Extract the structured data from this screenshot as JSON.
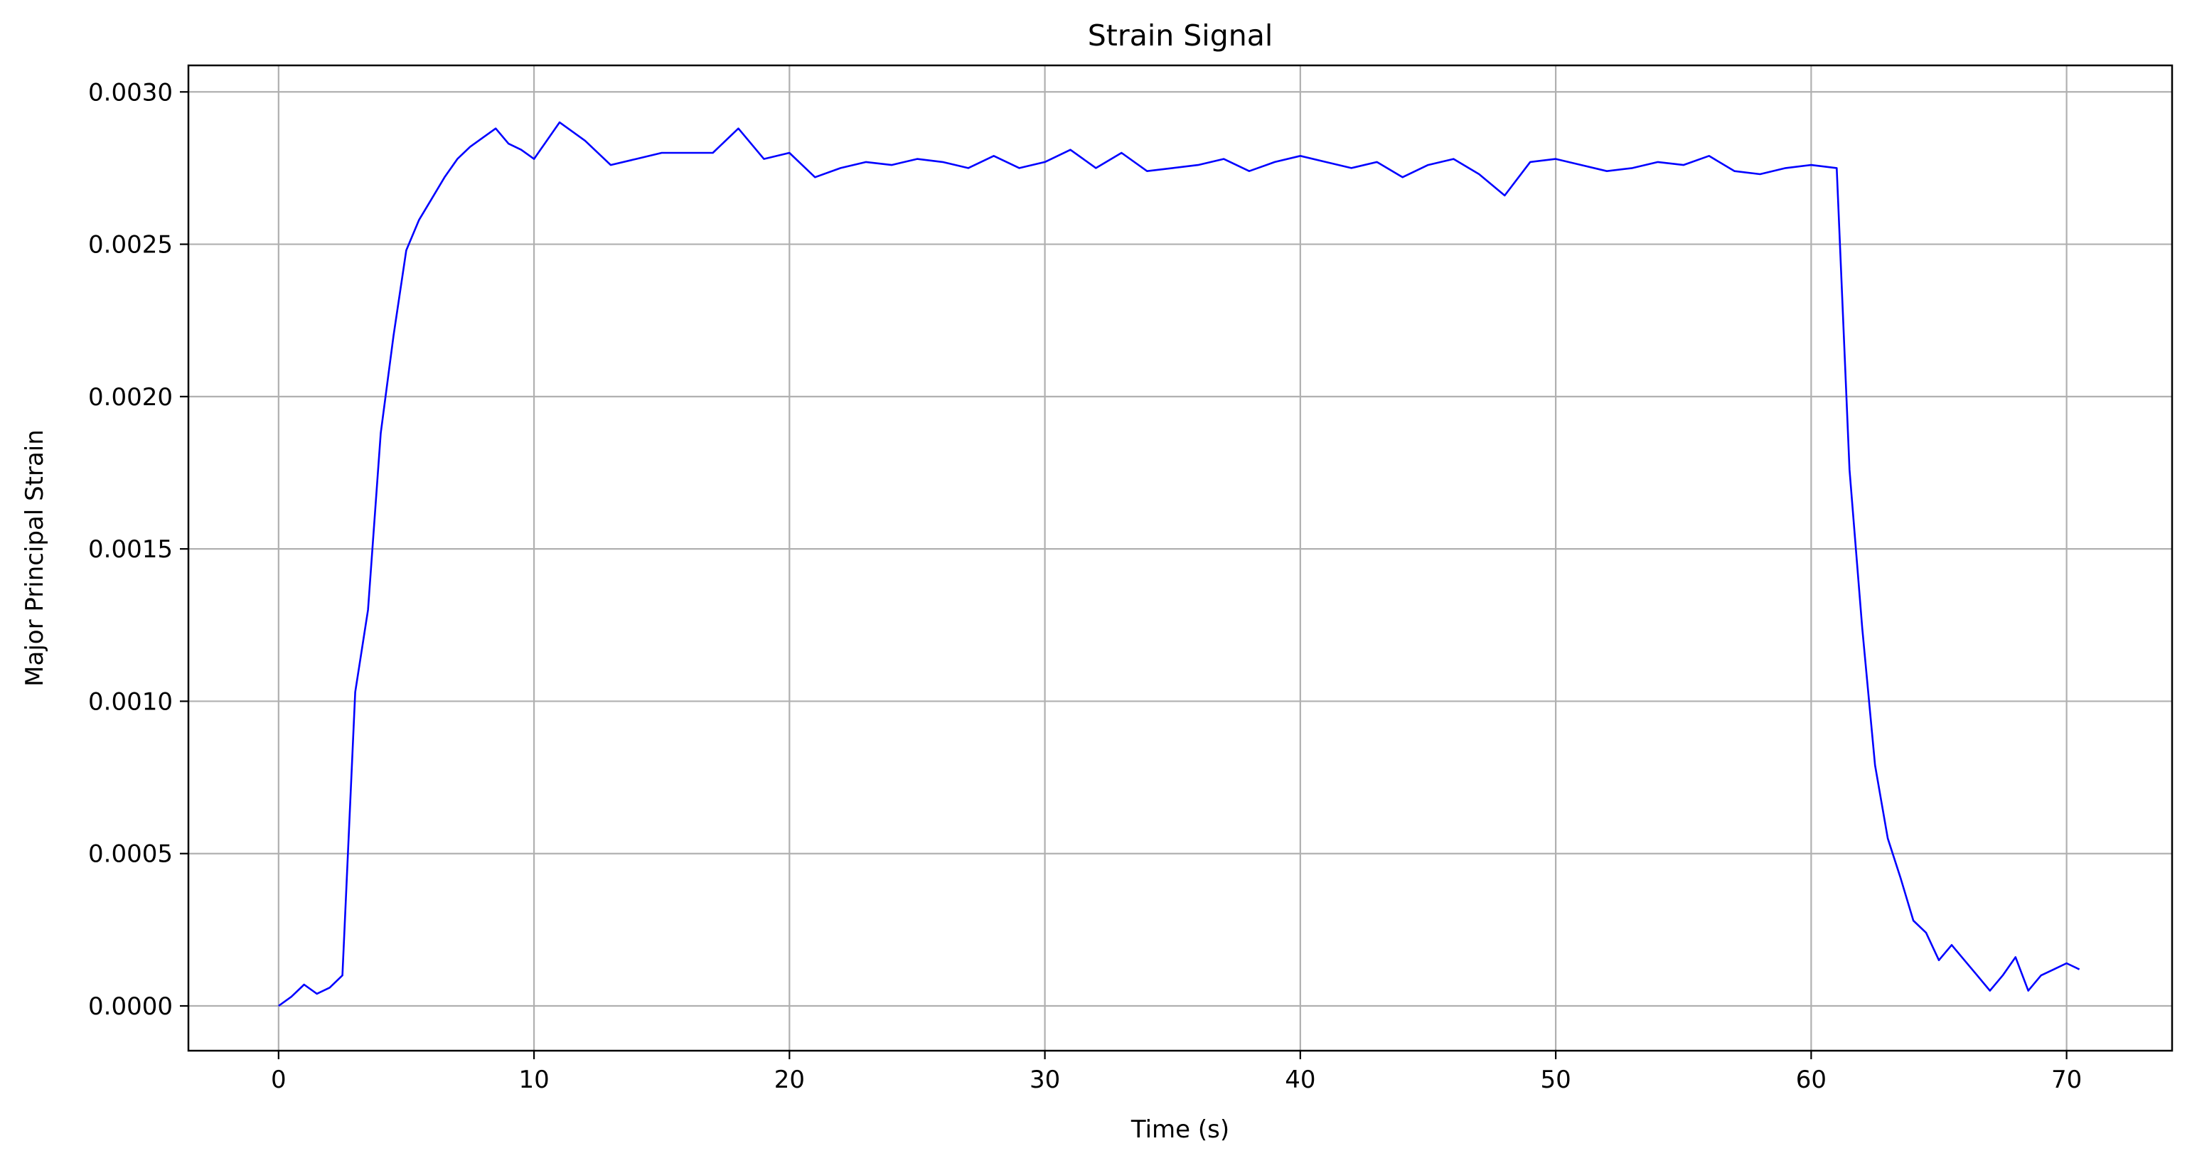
{
  "chart_data": {
    "type": "line",
    "title": "Strain Signal",
    "xlabel": "Time (s)",
    "ylabel": "Major Principal Strain",
    "xlim": [
      -3.53,
      74.13
    ],
    "ylim": [
      -0.000147,
      0.003087
    ],
    "xticks": [
      0,
      10,
      20,
      30,
      40,
      50,
      60,
      70
    ],
    "yticks": [
      0.0,
      0.0005,
      0.001,
      0.0015,
      0.002,
      0.0025,
      0.003
    ],
    "ytick_labels": [
      "0.0000",
      "0.0005",
      "0.0010",
      "0.0015",
      "0.0020",
      "0.0025",
      "0.0030"
    ],
    "grid": true,
    "line_color": "#0000ff",
    "grid_color": "#b0b0b0",
    "series": [
      {
        "x": [
          0,
          0.5,
          1,
          1.5,
          2,
          2.5,
          3,
          3.5,
          4,
          4.5,
          5,
          5.5,
          6,
          6.5,
          7,
          7.5,
          8,
          8.5,
          9,
          9.5,
          10,
          11,
          12,
          13,
          14,
          15,
          16,
          17,
          18,
          19,
          20,
          21,
          22,
          23,
          24,
          25,
          26,
          27,
          28,
          29,
          30,
          31,
          32,
          33,
          34,
          35,
          36,
          37,
          38,
          39,
          40,
          41,
          42,
          43,
          44,
          45,
          46,
          47,
          48,
          49,
          50,
          51,
          52,
          53,
          54,
          55,
          56,
          57,
          58,
          59,
          60,
          61,
          61.5,
          62,
          62.5,
          63,
          63.5,
          64,
          64.5,
          65,
          65.5,
          66,
          66.5,
          67,
          67.5,
          68,
          68.5,
          69,
          69.5,
          70,
          70.5
        ],
        "y": [
          0.0,
          3e-05,
          7e-05,
          4e-05,
          6e-05,
          0.0001,
          0.00103,
          0.0013,
          0.00188,
          0.0022,
          0.00248,
          0.00258,
          0.00265,
          0.00272,
          0.00278,
          0.00282,
          0.00285,
          0.00288,
          0.00283,
          0.00281,
          0.00278,
          0.0029,
          0.00284,
          0.00276,
          0.00278,
          0.0028,
          0.0028,
          0.0028,
          0.00288,
          0.00278,
          0.0028,
          0.00272,
          0.00275,
          0.00277,
          0.00276,
          0.00278,
          0.00277,
          0.00275,
          0.00279,
          0.00275,
          0.00277,
          0.00281,
          0.00275,
          0.0028,
          0.00274,
          0.00275,
          0.00276,
          0.00278,
          0.00274,
          0.00277,
          0.00279,
          0.00277,
          0.00275,
          0.00277,
          0.00272,
          0.00276,
          0.00278,
          0.00273,
          0.00266,
          0.00277,
          0.00278,
          0.00276,
          0.00274,
          0.00275,
          0.00277,
          0.00276,
          0.00279,
          0.00274,
          0.00273,
          0.00275,
          0.00276,
          0.00275,
          0.00176,
          0.00124,
          0.00079,
          0.00055,
          0.00042,
          0.00028,
          0.00024,
          0.00015,
          0.0002,
          0.00015,
          0.0001,
          5e-05,
          0.0001,
          0.00016,
          5e-05,
          0.0001,
          0.00012,
          0.00014,
          0.00012
        ]
      }
    ]
  }
}
